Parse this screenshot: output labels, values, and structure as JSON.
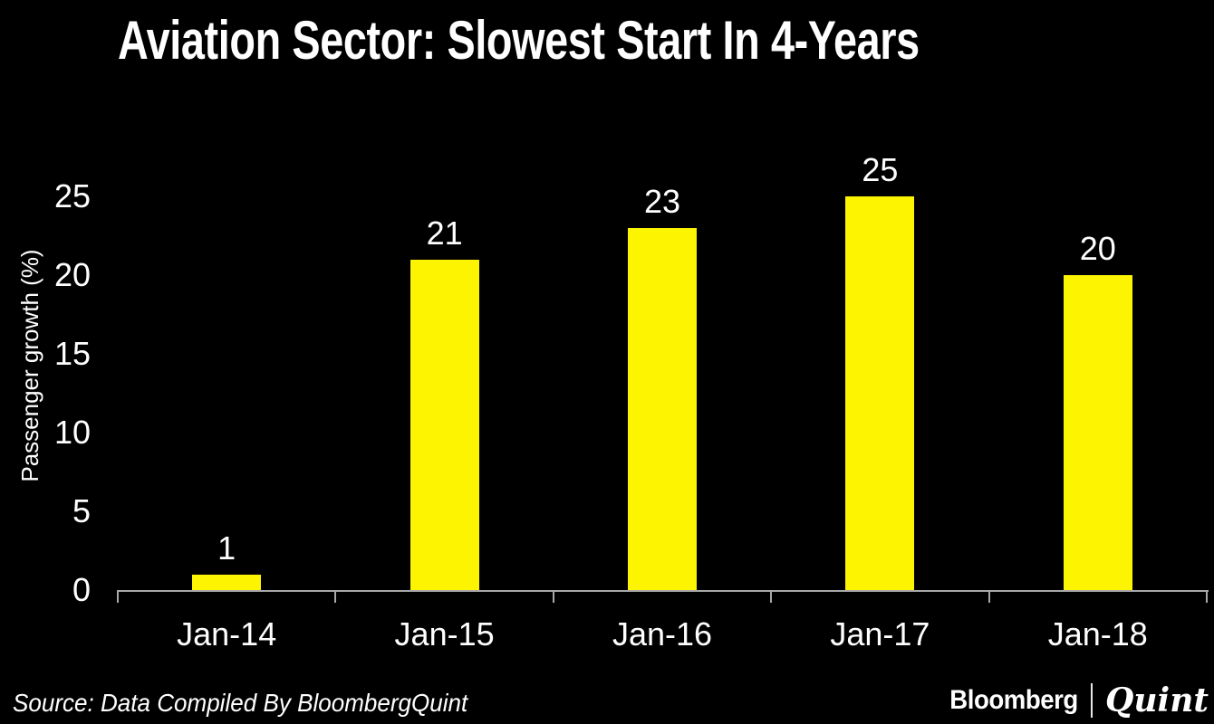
{
  "chart_data": {
    "type": "bar",
    "title": "Aviation Sector: Slowest Start In 4-Years",
    "xlabel": "",
    "ylabel": "Passenger growth (%)",
    "categories": [
      "Jan-14",
      "Jan-15",
      "Jan-16",
      "Jan-17",
      "Jan-18"
    ],
    "values": [
      1,
      21,
      23,
      25,
      20
    ],
    "yticks": [
      0,
      5,
      10,
      15,
      20,
      25
    ],
    "ylim": [
      0,
      25
    ],
    "data_labels": true,
    "grid": "off",
    "legend": "none",
    "colors": {
      "background": "#000000",
      "bar": "#FDF402",
      "axis": "#A8A8A8",
      "text": "#FFFFFF"
    }
  },
  "footer": {
    "source": "Source: Data Compiled By BloombergQuint",
    "logo_bloomberg": "Bloomberg",
    "logo_quint": "Quint"
  }
}
